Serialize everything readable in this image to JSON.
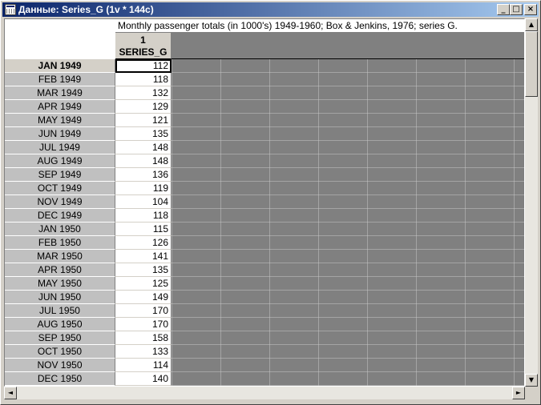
{
  "window": {
    "title": "Данные: Series_G (1v * 144c)"
  },
  "titlebar_buttons": {
    "minimize": "_",
    "maximize": "□",
    "close": "×"
  },
  "table": {
    "title": "Monthly passenger totals (in 1000's) 1949-1960; Box & Jenkins, 1976; series G.",
    "column": {
      "number": "1",
      "name": "SERIES_G"
    },
    "rows": [
      {
        "label": "JAN 1949",
        "value": "112"
      },
      {
        "label": "FEB 1949",
        "value": "118"
      },
      {
        "label": "MAR 1949",
        "value": "132"
      },
      {
        "label": "APR 1949",
        "value": "129"
      },
      {
        "label": "MAY 1949",
        "value": "121"
      },
      {
        "label": "JUN 1949",
        "value": "135"
      },
      {
        "label": "JUL 1949",
        "value": "148"
      },
      {
        "label": "AUG 1949",
        "value": "148"
      },
      {
        "label": "SEP 1949",
        "value": "136"
      },
      {
        "label": "OCT 1949",
        "value": "119"
      },
      {
        "label": "NOV 1949",
        "value": "104"
      },
      {
        "label": "DEC 1949",
        "value": "118"
      },
      {
        "label": "JAN 1950",
        "value": "115"
      },
      {
        "label": "FEB 1950",
        "value": "126"
      },
      {
        "label": "MAR 1950",
        "value": "141"
      },
      {
        "label": "APR 1950",
        "value": "135"
      },
      {
        "label": "MAY 1950",
        "value": "125"
      },
      {
        "label": "JUN 1950",
        "value": "149"
      },
      {
        "label": "JUL 1950",
        "value": "170"
      },
      {
        "label": "AUG 1950",
        "value": "170"
      },
      {
        "label": "SEP 1950",
        "value": "158"
      },
      {
        "label": "OCT 1950",
        "value": "133"
      },
      {
        "label": "NOV 1950",
        "value": "114"
      },
      {
        "label": "DEC 1950",
        "value": "140"
      }
    ]
  },
  "scroll": {
    "up": "▲",
    "down": "▼",
    "left": "◄",
    "right": "►"
  }
}
